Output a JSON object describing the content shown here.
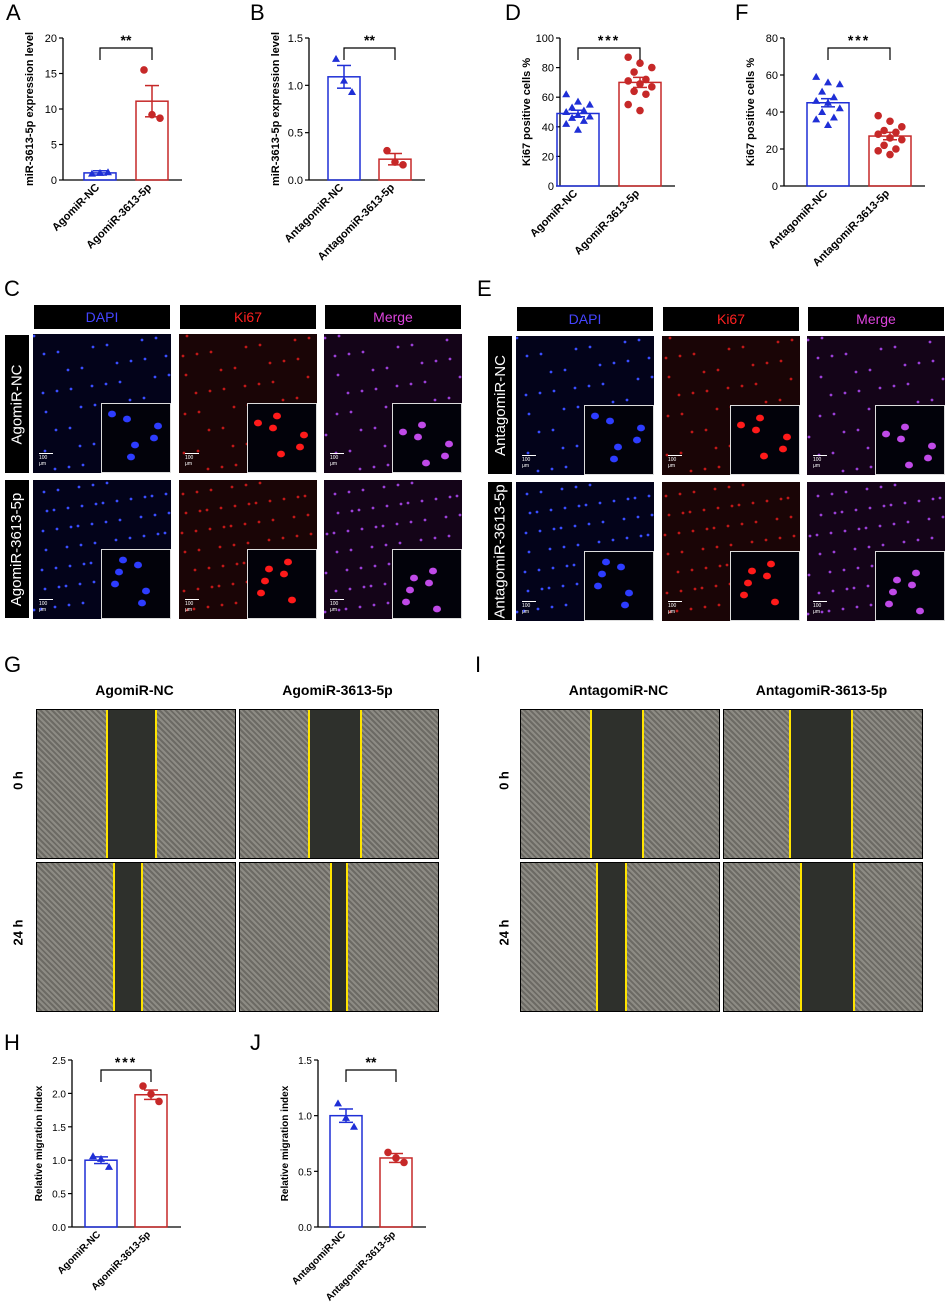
{
  "panel_letters": {
    "A": "A",
    "B": "B",
    "C": "C",
    "D": "D",
    "E": "E",
    "F": "F",
    "G": "G",
    "H": "H",
    "I": "I",
    "J": "J"
  },
  "colors": {
    "blue": "#1f2fd6",
    "red": "#c62828",
    "dapi": "#4444ff",
    "ki67": "#ff2020",
    "merge": "#dd44dd",
    "yellow": "#ffe400"
  },
  "chart_data": [
    {
      "id": "A",
      "type": "bar",
      "categories": [
        "AgomiR-NC",
        "AgomiR-3613-5p"
      ],
      "ylabel": "miR-3613-5p expression level",
      "ylim": [
        0,
        20
      ],
      "yticks": [
        "0",
        "5",
        "10",
        "15",
        "20"
      ],
      "means": [
        1.0,
        11.1
      ],
      "sem": [
        0.3,
        2.2
      ],
      "points": [
        [
          0.9,
          1.0,
          1.1
        ],
        [
          15.5,
          9.2,
          8.7
        ]
      ],
      "markers": [
        "triangle",
        "circle"
      ],
      "significance": "**"
    },
    {
      "id": "B",
      "type": "bar",
      "categories": [
        "AntagomiR-NC",
        "AntagomiR-3613-5p"
      ],
      "ylabel": "miR-3613-5p expression level",
      "ylim": [
        0,
        1.5
      ],
      "yticks": [
        "0.0",
        "0.5",
        "1.0",
        "1.5"
      ],
      "means": [
        1.09,
        0.22
      ],
      "sem": [
        0.12,
        0.06
      ],
      "points": [
        [
          1.28,
          1.05,
          0.93
        ],
        [
          0.31,
          0.19,
          0.16
        ]
      ],
      "markers": [
        "triangle",
        "circle"
      ],
      "significance": "**"
    },
    {
      "id": "D",
      "type": "bar",
      "categories": [
        "AgomiR-NC",
        "AgomiR-3613-5p"
      ],
      "ylabel": "Ki67 positive cells %",
      "ylim": [
        0,
        100
      ],
      "yticks": [
        "0",
        "20",
        "40",
        "60",
        "80",
        "100"
      ],
      "means": [
        49,
        70
      ],
      "sem": [
        2.2,
        3.4
      ],
      "points": [
        [
          62,
          57,
          55,
          53,
          51,
          50,
          48,
          47,
          46,
          44,
          42,
          38
        ],
        [
          87,
          83,
          80,
          77,
          72,
          71,
          69,
          67,
          64,
          62,
          55,
          51
        ]
      ],
      "markers": [
        "triangle",
        "circle"
      ],
      "significance": "***"
    },
    {
      "id": "F",
      "type": "bar",
      "categories": [
        "AntagomiR-NC",
        "AntagomiR-3613-5p"
      ],
      "ylabel": "Ki67 positive cells %",
      "ylim": [
        0,
        80
      ],
      "yticks": [
        "0",
        "20",
        "40",
        "60",
        "80"
      ],
      "means": [
        45,
        27
      ],
      "sem": [
        2.2,
        2.0
      ],
      "points": [
        [
          59,
          56,
          55,
          51,
          48,
          46,
          45,
          42,
          40,
          37,
          36,
          33
        ],
        [
          38,
          35,
          32,
          30,
          29,
          28,
          26,
          25,
          22,
          20,
          19,
          17
        ]
      ],
      "markers": [
        "triangle",
        "circle"
      ],
      "significance": "***"
    },
    {
      "id": "H",
      "type": "bar",
      "categories": [
        "AgomiR-NC",
        "AgomiR-3613-5p"
      ],
      "ylabel": "Relative migration index",
      "ylim": [
        0,
        2.5
      ],
      "yticks": [
        "0.0",
        "0.5",
        "1.0",
        "1.5",
        "2.0",
        "2.5"
      ],
      "means": [
        1.0,
        1.98
      ],
      "sem": [
        0.05,
        0.07
      ],
      "points": [
        [
          1.06,
          1.02,
          0.9
        ],
        [
          2.11,
          1.99,
          1.88
        ]
      ],
      "markers": [
        "triangle",
        "circle"
      ],
      "significance": "***"
    },
    {
      "id": "J",
      "type": "bar",
      "categories": [
        "AntagomiR-NC",
        "AntagomiR-3613-5p"
      ],
      "ylabel": "Relative migration index",
      "ylim": [
        0,
        1.5
      ],
      "yticks": [
        "0.0",
        "0.5",
        "1.0",
        "1.5"
      ],
      "means": [
        1.0,
        0.62
      ],
      "sem": [
        0.06,
        0.04
      ],
      "points": [
        [
          1.11,
          0.98,
          0.9
        ],
        [
          0.67,
          0.62,
          0.58
        ]
      ],
      "markers": [
        "triangle",
        "circle"
      ],
      "significance": "**"
    }
  ],
  "panel_C": {
    "headers": [
      "DAPI",
      "Ki67",
      "Merge"
    ],
    "rows": [
      "AgomiR-NC",
      "AgomiR-3613-5p"
    ],
    "scale": "100 μm"
  },
  "panel_E": {
    "headers": [
      "DAPI",
      "Ki67",
      "Merge"
    ],
    "rows": [
      "AntagomiR-NC",
      "AntagomiR-3613-5p"
    ],
    "scale": "100 μm"
  },
  "panel_G": {
    "columns": [
      "AgomiR-NC",
      "AgomiR-3613-5p"
    ],
    "rows": [
      "0 h",
      "24 h"
    ]
  },
  "panel_I": {
    "columns": [
      "AntagomiR-NC",
      "AntagomiR-3613-5p"
    ],
    "rows": [
      "0 h",
      "24 h"
    ]
  }
}
